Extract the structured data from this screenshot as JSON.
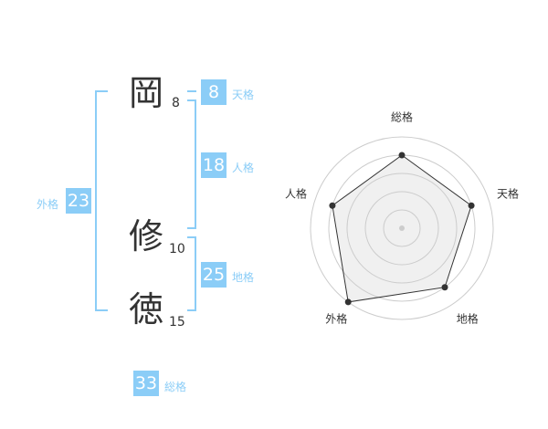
{
  "name": {
    "chars": [
      {
        "char": "岡",
        "strokes": "8"
      },
      {
        "char": "修",
        "strokes": "10"
      },
      {
        "char": "徳",
        "strokes": "15"
      }
    ]
  },
  "kaku": {
    "tenkaku": {
      "value": "8",
      "label": "天格"
    },
    "jinkaku": {
      "value": "18",
      "label": "人格"
    },
    "chikaku": {
      "value": "25",
      "label": "地格"
    },
    "gaikaku": {
      "value": "23",
      "label": "外格"
    },
    "soukaku": {
      "value": "33",
      "label": "総格"
    }
  },
  "colors": {
    "accent": "#8bcdf7",
    "radar_fill": "#f0f0f0",
    "radar_line": "#333333",
    "ring": "#cccccc"
  },
  "chart_data": {
    "type": "radar",
    "axes": [
      "総格",
      "天格",
      "地格",
      "外格",
      "人格"
    ],
    "values": [
      4,
      4,
      4,
      5,
      4
    ],
    "range": [
      0,
      5
    ],
    "rings": 5
  }
}
